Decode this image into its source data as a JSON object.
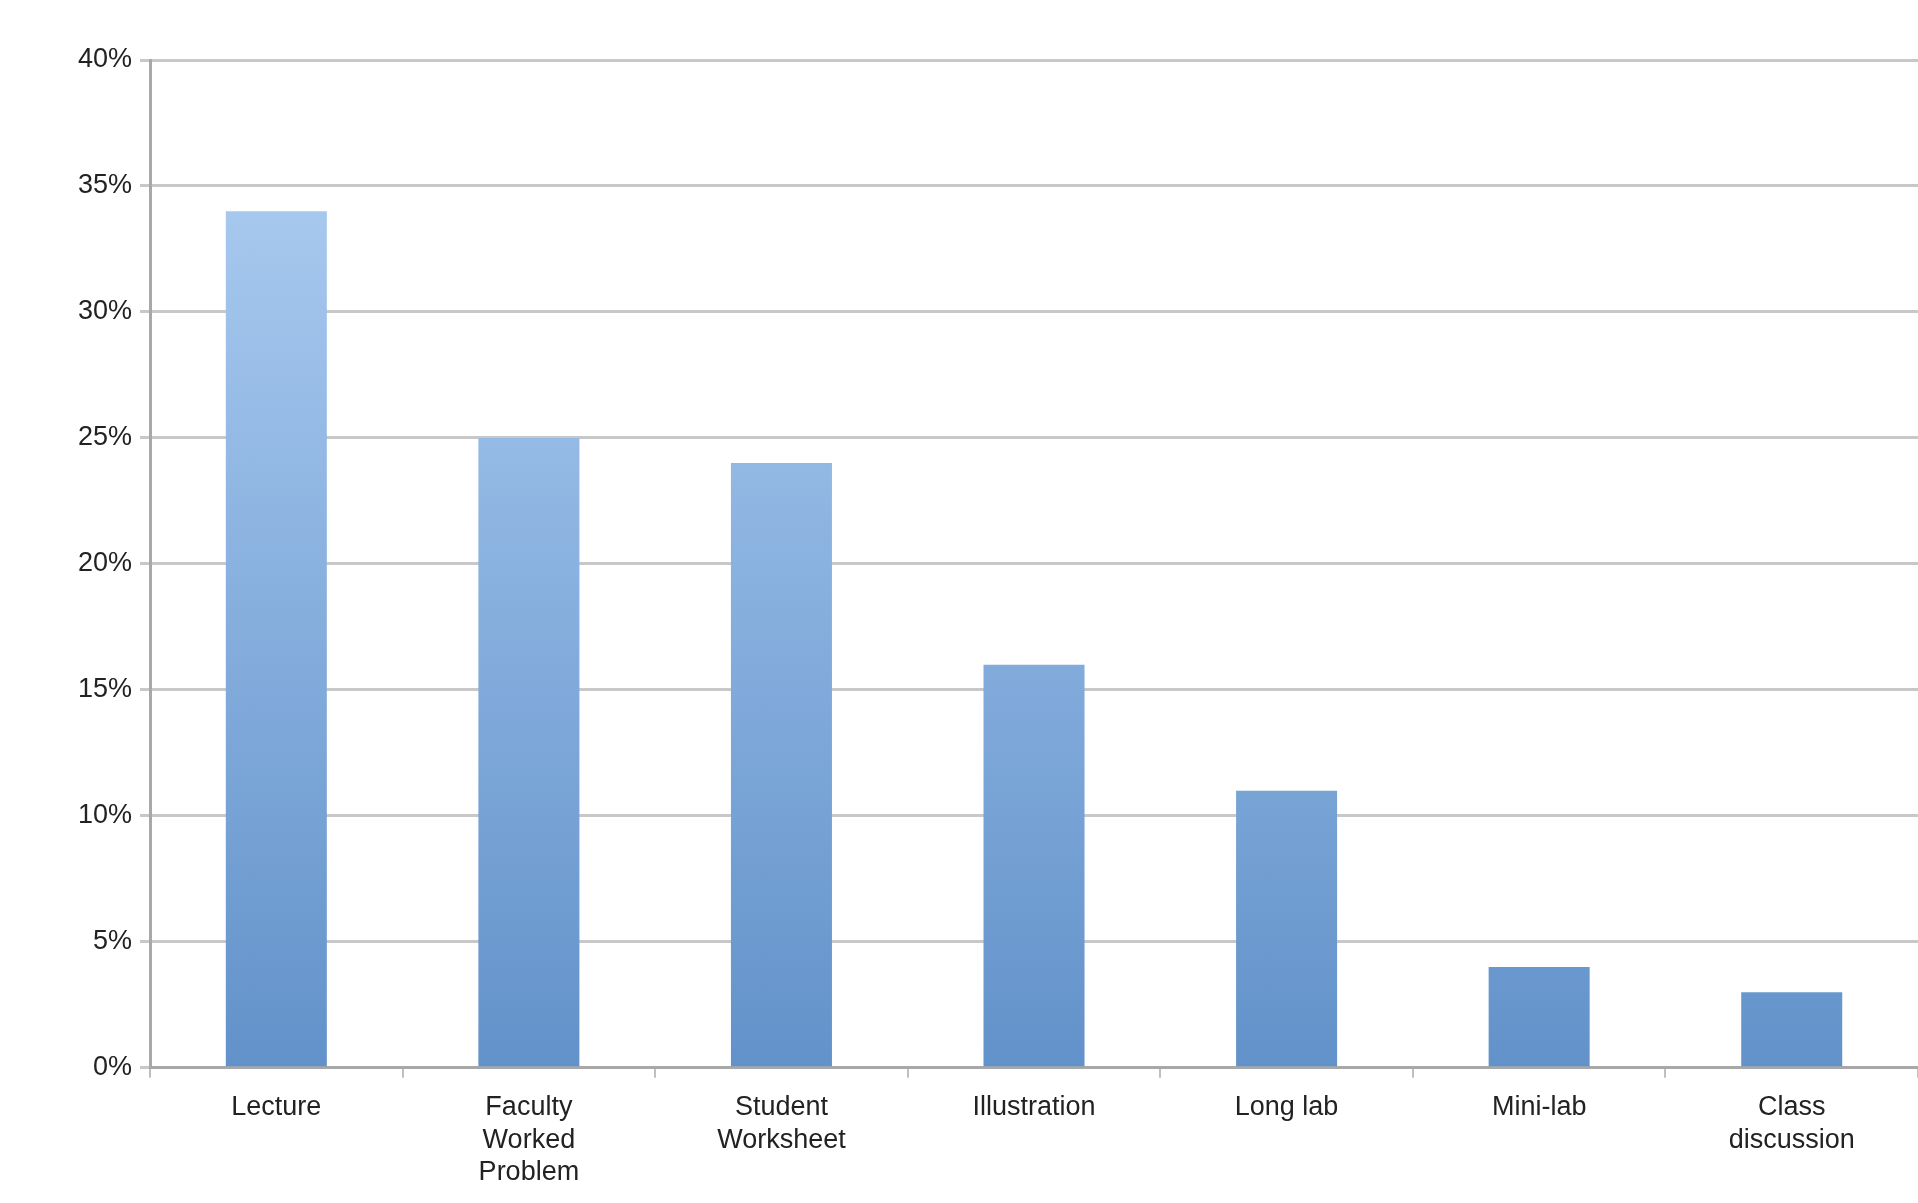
{
  "chart_data": {
    "type": "bar",
    "categories": [
      "Lecture",
      "Faculty Worked Problem",
      "Student Worksheet",
      "Illustration",
      "Long lab",
      "Mini-lab",
      "Class discussion"
    ],
    "values": [
      34,
      25,
      24,
      16,
      11,
      4,
      3
    ],
    "color": "#6fa6e6",
    "ylim": [
      0,
      40
    ],
    "yticks": [
      {
        "value": 0,
        "label": "0%"
      },
      {
        "value": 5,
        "label": "5%"
      },
      {
        "value": 10,
        "label": "10%"
      },
      {
        "value": 15,
        "label": "15%"
      },
      {
        "value": 20,
        "label": "20%"
      },
      {
        "value": 25,
        "label": "25%"
      },
      {
        "value": 30,
        "label": "30%"
      },
      {
        "value": 35,
        "label": "35%"
      },
      {
        "value": 40,
        "label": "40%"
      }
    ],
    "grid": "y",
    "legend": false
  }
}
